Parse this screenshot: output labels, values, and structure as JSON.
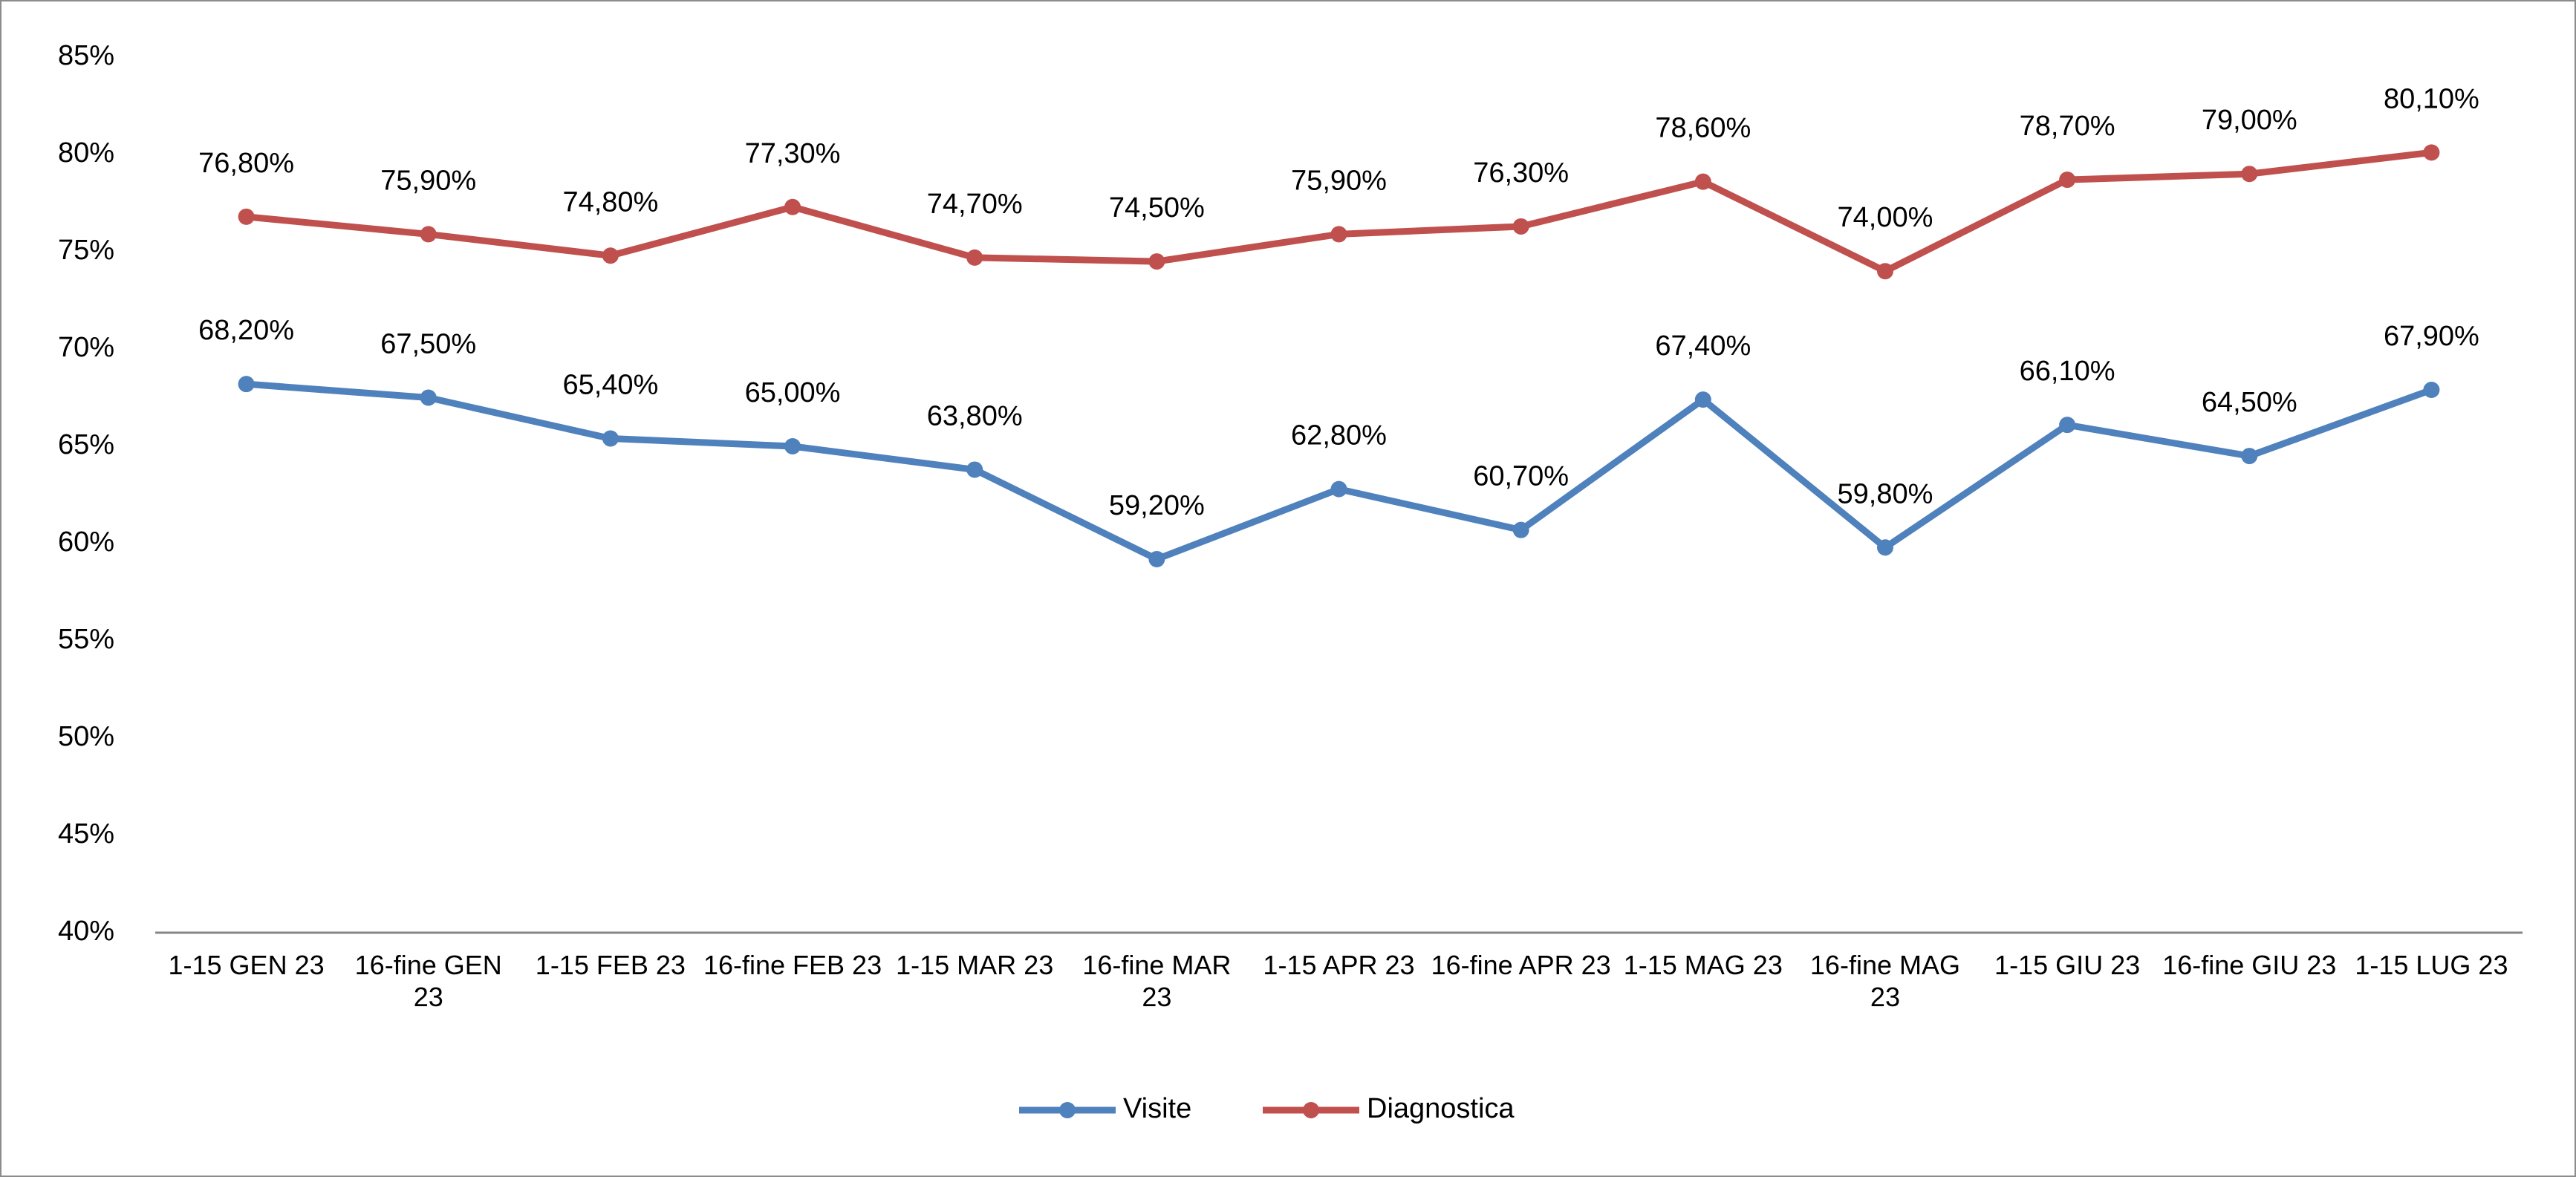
{
  "chart_data": {
    "type": "line",
    "categories": [
      "1-15 GEN 23",
      "16-fine GEN 23",
      "1-15 FEB 23",
      "16-fine FEB 23",
      "1-15 MAR 23",
      "16-fine MAR 23",
      "1-15 APR 23",
      "16-fine APR 23",
      "1-15 MAG 23",
      "16-fine MAG 23",
      "1-15 GIU 23",
      "16-fine GIU 23",
      "1-15 LUG 23"
    ],
    "series": [
      {
        "name": "Visite",
        "color": "#4f81bd",
        "values": [
          68.2,
          67.5,
          65.4,
          65.0,
          63.8,
          59.2,
          62.8,
          60.7,
          67.4,
          59.8,
          66.1,
          64.5,
          67.9
        ],
        "value_labels": [
          "68,20%",
          "67,50%",
          "65,40%",
          "65,00%",
          "63,80%",
          "59,20%",
          "62,80%",
          "60,70%",
          "67,40%",
          "59,80%",
          "66,10%",
          "64,50%",
          "67,90%"
        ]
      },
      {
        "name": "Diagnostica",
        "color": "#c0504d",
        "values": [
          76.8,
          75.9,
          74.8,
          77.3,
          74.7,
          74.5,
          75.9,
          76.3,
          78.6,
          74.0,
          78.7,
          79.0,
          80.1
        ],
        "value_labels": [
          "76,80%",
          "75,90%",
          "74,80%",
          "77,30%",
          "74,70%",
          "74,50%",
          "75,90%",
          "76,30%",
          "78,60%",
          "74,00%",
          "78,70%",
          "79,00%",
          "80,10%"
        ]
      }
    ],
    "ylim": [
      40,
      85
    ],
    "yticks": [
      {
        "value": 40,
        "label": "40%"
      },
      {
        "value": 45,
        "label": "45%"
      },
      {
        "value": 50,
        "label": "50%"
      },
      {
        "value": 55,
        "label": "55%"
      },
      {
        "value": 60,
        "label": "60%"
      },
      {
        "value": 65,
        "label": "65%"
      },
      {
        "value": 70,
        "label": "70%"
      },
      {
        "value": 75,
        "label": "75%"
      },
      {
        "value": 80,
        "label": "80%"
      },
      {
        "value": 85,
        "label": "85%"
      }
    ],
    "legend": "bottom"
  }
}
